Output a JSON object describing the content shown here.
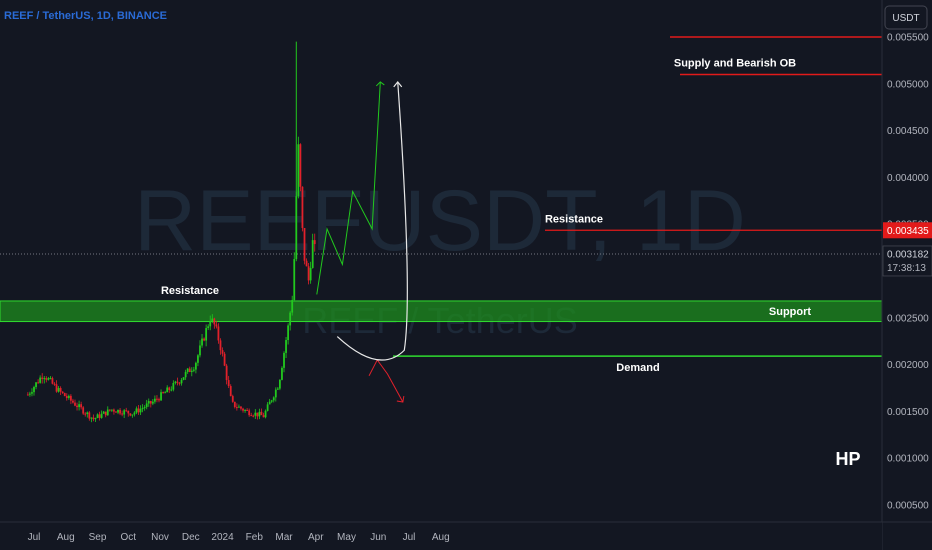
{
  "header": {
    "symbol": "REEF / TetherUS, 1D, BINANCE",
    "currency_button": "USDT"
  },
  "watermark": {
    "ticker": "REEFUSDT, 1D",
    "name": "REEF / TetherUS"
  },
  "chart_data": {
    "type": "candlestick",
    "title": "REEF / TetherUS, 1D, BINANCE",
    "y_ticks": [
      "0.005500",
      "0.005000",
      "0.004500",
      "0.004000",
      "0.003500",
      "0.003000",
      "0.002500",
      "0.002000",
      "0.001500",
      "0.001000",
      "0.000500"
    ],
    "x_ticks": [
      "Jul",
      "Aug",
      "Sep",
      "Oct",
      "Nov",
      "Dec",
      "2024",
      "Feb",
      "Mar",
      "Apr",
      "May",
      "Jun",
      "Jul",
      "Aug"
    ],
    "ylim": [
      0.00045,
      0.0056
    ],
    "grid": false,
    "colors": {
      "up": "#22c91e",
      "down": "#e2212b",
      "zone": "#1e8c1e",
      "line_red": "#e21a1a",
      "line_green": "#2fdc2f",
      "arrow_white": "#e8e8e8"
    },
    "candles_anchor": {
      "dates": [
        "2023-06-25",
        "2023-07-10",
        "2023-07-25",
        "2023-08-10",
        "2023-08-28",
        "2023-09-15",
        "2023-10-05",
        "2023-10-25",
        "2023-11-15",
        "2023-12-05",
        "2023-12-20",
        "2023-12-25",
        "2023-12-31",
        "2024-01-10",
        "2024-01-25",
        "2024-02-10",
        "2024-02-25",
        "2024-03-05",
        "2024-03-10",
        "2024-03-13",
        "2024-03-15",
        "2024-03-20",
        "2024-03-25",
        "2024-03-29",
        "2024-04-01"
      ],
      "prices": [
        0.00168,
        0.0019,
        0.00172,
        0.00158,
        0.00142,
        0.00152,
        0.00148,
        0.0016,
        0.00178,
        0.002,
        0.0025,
        0.0024,
        0.00215,
        0.00158,
        0.0015,
        0.00145,
        0.0018,
        0.0024,
        0.0028,
        0.0038,
        0.0043,
        0.0032,
        0.0029,
        0.0033,
        0.00318
      ]
    },
    "last_price": {
      "value": "0.003182",
      "countdown": "17:38:13"
    },
    "levels": [
      {
        "name": "Supply and Bearish OB",
        "upper": 0.0055,
        "lower": 0.0051
      },
      {
        "name": "Resistance",
        "value": 0.003435,
        "label": "0.003435"
      },
      {
        "name": "Resistance / Support zone",
        "upper": 0.00268,
        "lower": 0.00246
      },
      {
        "name": "Demand",
        "value": 0.00209
      }
    ],
    "annotations": [
      "Resistance",
      "Resistance",
      "Support",
      "Demand",
      "Supply and Bearish OB"
    ],
    "projection_green": {
      "dates": [
        "2024-04-02",
        "2024-04-12",
        "2024-04-27",
        "2024-05-07",
        "2024-05-26",
        "2024-06-03"
      ],
      "prices": [
        0.00275,
        0.00345,
        0.00307,
        0.00385,
        0.00345,
        0.00502
      ]
    },
    "projection_red": {
      "dates": [
        "2024-05-23",
        "2024-05-31",
        "2024-06-10",
        "2024-06-25"
      ],
      "prices": [
        0.00188,
        0.00205,
        0.0019,
        0.0016
      ]
    },
    "projection_white": {
      "dates": [
        "2024-04-22",
        "2024-06-02",
        "2024-06-20"
      ],
      "prices": [
        0.0023,
        0.0021,
        0.00502
      ]
    }
  },
  "author_mark": "HP"
}
